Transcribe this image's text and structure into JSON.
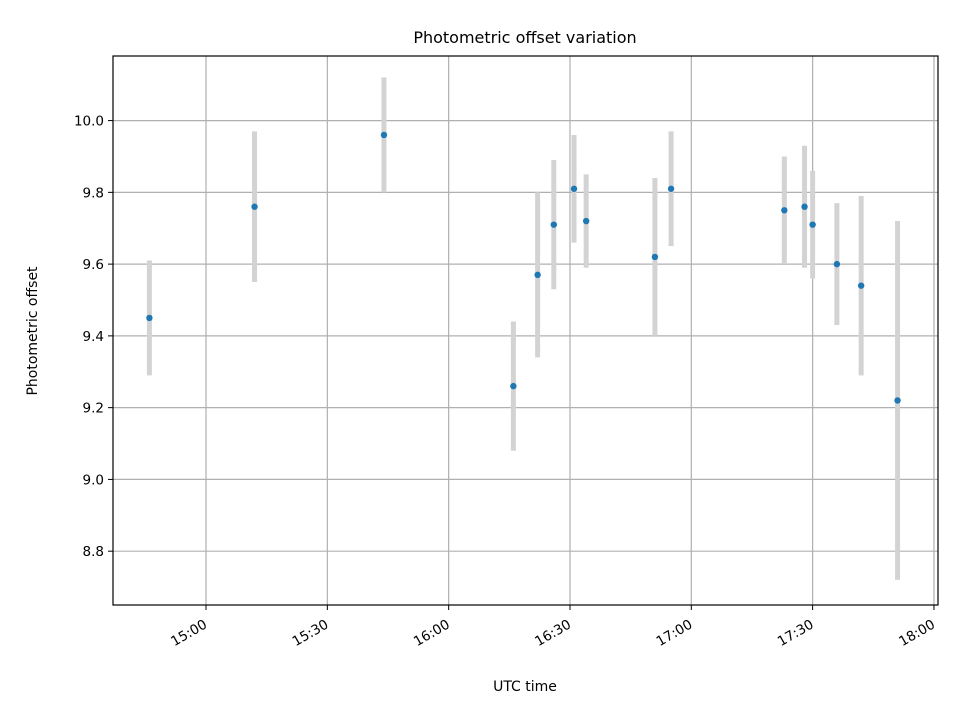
{
  "chart_data": {
    "type": "scatter",
    "title": "Photometric offset variation",
    "xlabel": "UTC time",
    "ylabel": "Photometric offset",
    "x_axis": "time",
    "xlim": [
      "14:37",
      "18:01"
    ],
    "ylim": [
      8.65,
      10.18
    ],
    "x_ticks": [
      "15:00",
      "15:30",
      "16:00",
      "16:30",
      "17:00",
      "17:30",
      "18:00"
    ],
    "y_ticks": [
      8.8,
      9.0,
      9.2,
      9.4,
      9.6,
      9.8,
      10.0
    ],
    "y_tick_labels": [
      "8.8",
      "9.0",
      "9.2",
      "9.4",
      "9.6",
      "9.8",
      "10.0"
    ],
    "grid": true,
    "colors": {
      "points": "#1f77b4",
      "errorbars": "#d3d3d3",
      "grid": "#b0b0b0"
    },
    "points": [
      {
        "time": "14:46",
        "y": 9.45,
        "err": 0.16
      },
      {
        "time": "15:12",
        "y": 9.76,
        "err": 0.21
      },
      {
        "time": "15:44",
        "y": 9.96,
        "err": 0.16
      },
      {
        "time": "16:16",
        "y": 9.26,
        "err": 0.18
      },
      {
        "time": "16:22",
        "y": 9.57,
        "err": 0.23
      },
      {
        "time": "16:26",
        "y": 9.71,
        "err": 0.18
      },
      {
        "time": "16:31",
        "y": 9.81,
        "err": 0.15
      },
      {
        "time": "16:34",
        "y": 9.72,
        "err": 0.13
      },
      {
        "time": "16:51",
        "y": 9.62,
        "err": 0.22
      },
      {
        "time": "16:55",
        "y": 9.81,
        "err": 0.16
      },
      {
        "time": "17:23",
        "y": 9.75,
        "err": 0.15
      },
      {
        "time": "17:28",
        "y": 9.76,
        "err": 0.17
      },
      {
        "time": "17:30",
        "y": 9.71,
        "err": 0.15
      },
      {
        "time": "17:36",
        "y": 9.6,
        "err": 0.17
      },
      {
        "time": "17:42",
        "y": 9.54,
        "err": 0.25
      },
      {
        "time": "17:51",
        "y": 9.22,
        "err": 0.5
      }
    ]
  }
}
